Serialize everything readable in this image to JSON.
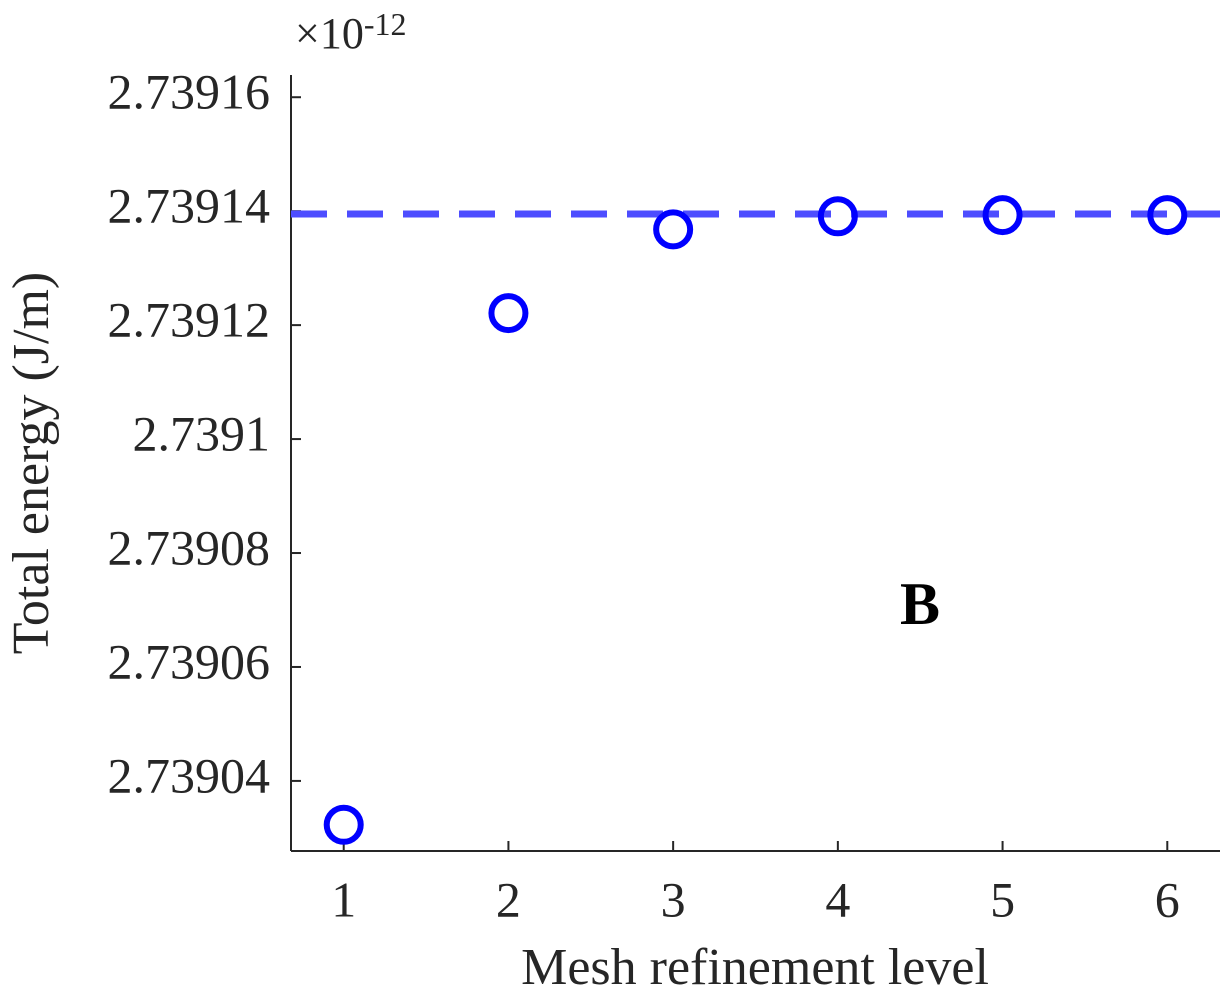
{
  "chart_data": {
    "type": "scatter",
    "x_label": "Mesh refinement level",
    "y_label": "Total energy (J/m)",
    "y_multiplier_base": "×10",
    "y_multiplier_exponent": "-12",
    "annotation": "B",
    "x": [
      1,
      2,
      3,
      4,
      5,
      6
    ],
    "series": [
      {
        "name": "Total energy",
        "color": "#0000ff",
        "values": [
          2.7390323,
          2.7391221,
          2.7391368,
          2.7391391,
          2.7391393,
          2.7391393
        ]
      }
    ],
    "reference_line": 2.7391395,
    "reference_color": "#4d4dff",
    "xlim": [
      0.68,
      6.32
    ],
    "xticks": [
      1,
      2,
      3,
      4,
      5,
      6
    ],
    "ylim": [
      2.7390277,
      2.7391639
    ],
    "yticks": [
      2.73904,
      2.73906,
      2.73908,
      2.7391,
      2.73912,
      2.73914,
      2.73916
    ]
  }
}
